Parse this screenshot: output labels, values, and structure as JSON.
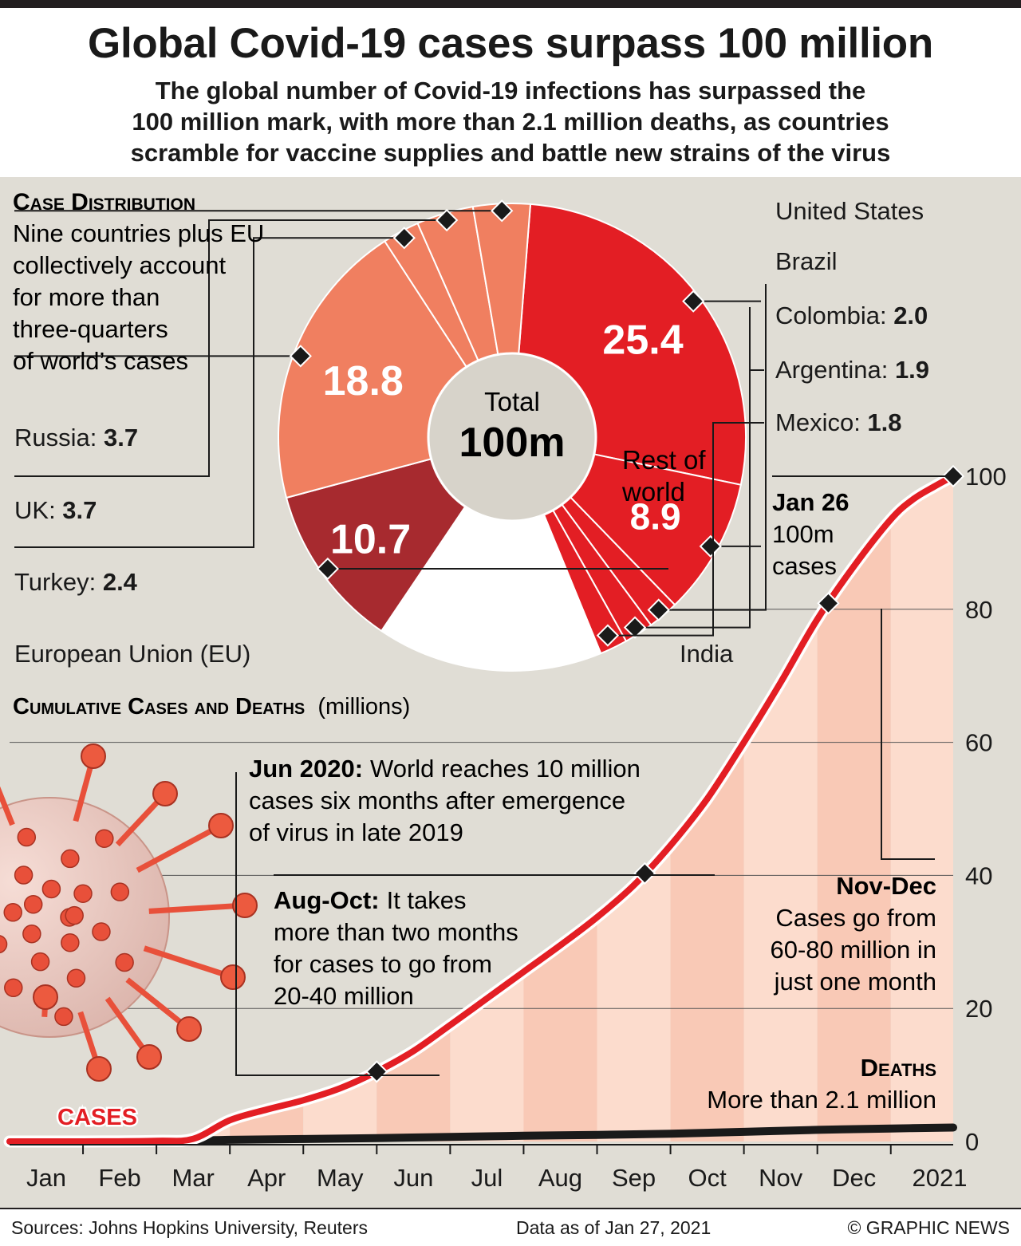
{
  "header": {
    "title": "Global Covid-19 cases surpass 100 million",
    "subtitle": [
      "The global number of Covid-19 infections has surpassed the",
      "100 million mark, with more than 2.1 million deaths, as countries",
      "scramble for vaccine supplies and battle new strains of the virus"
    ]
  },
  "distribution": {
    "heading": "Case Distribution",
    "description": [
      "Nine countries plus EU",
      "collectively account",
      "for more than",
      "three-quarters",
      "of world’s cases"
    ],
    "total_label": "Total",
    "total_value": "100m",
    "rest_label": [
      "Rest of",
      "world"
    ]
  },
  "cumulative": {
    "heading": "Cumulative Cases and Deaths",
    "units": "(millions)",
    "cases_label": "CASES",
    "deaths_heading": "Deaths",
    "deaths_text": "More than 2.1 million",
    "annotations": {
      "jun_bold": "Jun 2020:",
      "jun_lines": [
        "World reaches 10 million",
        "cases six months after emergence",
        "of virus in late 2019"
      ],
      "aug_bold": "Aug-Oct:",
      "aug_lines": [
        "It takes",
        "more than two months",
        "for cases to go from",
        "20-40 million"
      ],
      "nov_bold": "Nov-Dec",
      "nov_lines": [
        "Cases go from",
        "60-80 million in",
        "just one month"
      ],
      "jan_bold": "Jan 26",
      "jan_lines": [
        "100m",
        "cases"
      ]
    }
  },
  "footer": {
    "sources": "Sources: Johns Hopkins University, Reuters",
    "data_as_of": "Data as of Jan 27, 2021",
    "credit": "© GRAPHIC NEWS"
  },
  "colors": {
    "us": "#e31e24",
    "others_red": "#e31e24",
    "eu": "#f07f60",
    "india": "#a72a2f",
    "rest": "#ffffff",
    "cases_line": "#e31e24",
    "deaths_line": "#1a1a1a",
    "area_a": "#f9c9b6",
    "area_b": "#fcdccd",
    "background": "#e0ddd5"
  },
  "chart_data": [
    {
      "type": "pie",
      "title": "Case Distribution",
      "units": "million cases",
      "slices": [
        {
          "label": "United States",
          "value": 25.4,
          "display": "25.4"
        },
        {
          "label": "Brazil",
          "value": 8.9,
          "display": "8.9"
        },
        {
          "label": "Colombia",
          "value": 2.0,
          "display": "2.0"
        },
        {
          "label": "Argentina",
          "value": 1.9,
          "display": "1.9"
        },
        {
          "label": "Mexico",
          "value": 1.8,
          "display": "1.8"
        },
        {
          "label": "Rest of world",
          "value": 14.7
        },
        {
          "label": "India",
          "value": 10.7,
          "display": "10.7"
        },
        {
          "label": "European Union (EU)",
          "value": 18.8,
          "display": "18.8"
        },
        {
          "label": "Turkey",
          "value": 2.4,
          "display": "2.4"
        },
        {
          "label": "UK",
          "value": 3.7,
          "display": "3.7"
        },
        {
          "label": "Russia",
          "value": 3.7,
          "display": "3.7"
        }
      ]
    },
    {
      "type": "line",
      "title": "Cumulative Cases and Deaths (millions)",
      "ylabel": "millions",
      "ylim": [
        0,
        100
      ],
      "yticks": [
        0,
        20,
        40,
        60,
        80,
        100
      ],
      "xticks": [
        "Jan",
        "Feb",
        "Mar",
        "Apr",
        "May",
        "Jun",
        "Jul",
        "Aug",
        "Sep",
        "Oct",
        "Nov",
        "Dec",
        "2021"
      ],
      "xlim": [
        0,
        12.85
      ],
      "series": [
        {
          "name": "CASES",
          "x": [
            0,
            1,
            2,
            2.5,
            3,
            3.5,
            4,
            4.5,
            5,
            5.5,
            6,
            6.5,
            7,
            7.5,
            8,
            8.5,
            9,
            9.5,
            10,
            10.5,
            11,
            11.5,
            12,
            12.3,
            12.6,
            12.85
          ],
          "y": [
            0,
            0,
            0.1,
            0.4,
            3.2,
            4.8,
            6.2,
            8.0,
            10.5,
            13.6,
            17.5,
            21.5,
            25.5,
            29.5,
            33.7,
            38.5,
            44.5,
            51.5,
            60.0,
            69.0,
            78.5,
            86.5,
            93.5,
            96.5,
            98.5,
            100.0
          ]
        },
        {
          "name": "Deaths",
          "x": [
            0,
            2,
            3,
            4,
            5,
            6,
            7,
            8,
            9,
            10,
            11,
            12,
            12.85
          ],
          "y": [
            0,
            0,
            0.25,
            0.37,
            0.51,
            0.68,
            0.86,
            1.0,
            1.18,
            1.45,
            1.75,
            1.96,
            2.1
          ]
        }
      ],
      "highlights": [
        {
          "label": "Jun 2020",
          "x": 5.0,
          "y": 10
        },
        {
          "label": "Aug-Oct",
          "x": 8.65,
          "y": 40
        },
        {
          "label": "Nov-Dec",
          "x": 11.15,
          "y": 80
        },
        {
          "label": "Jan 26",
          "x": 12.85,
          "y": 100
        }
      ]
    }
  ]
}
